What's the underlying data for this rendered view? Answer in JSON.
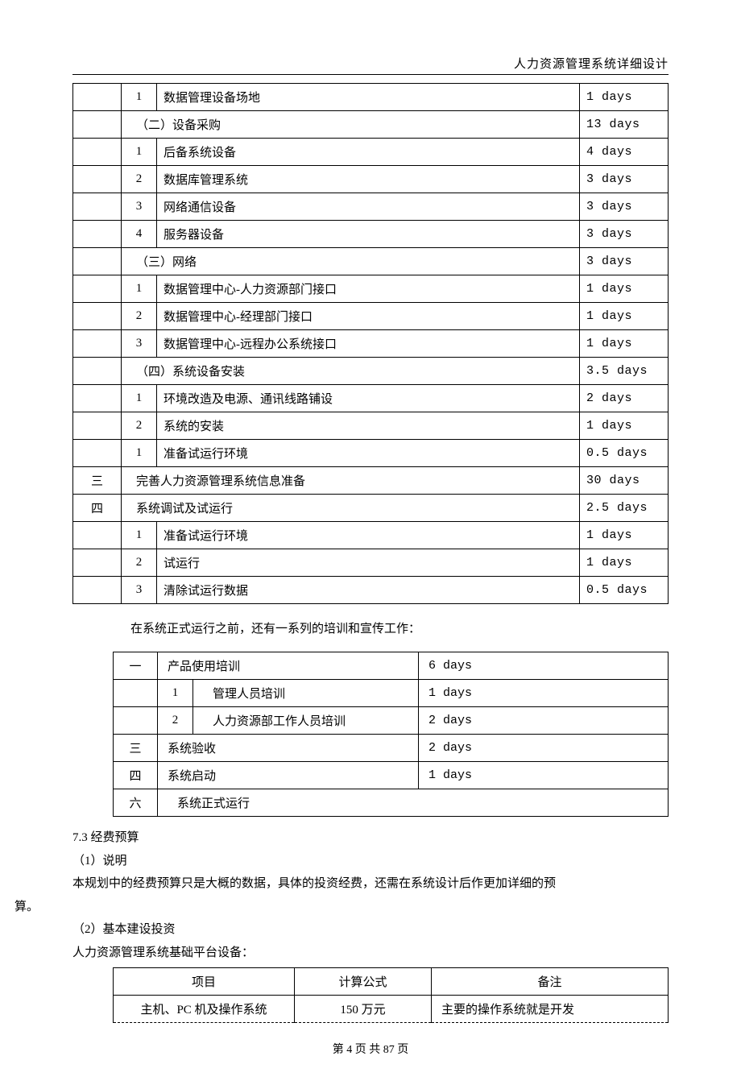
{
  "header": {
    "title": "人力资源管理系统详细设计"
  },
  "table1": {
    "columns": {
      "a_width": 60,
      "b_width": 44,
      "d_width": 110
    },
    "rows": [
      {
        "a": "",
        "b": "1",
        "c": "数据管理设备场地",
        "d": "1 days"
      },
      {
        "a": "",
        "section": "（二）设备采购",
        "d": "13 days"
      },
      {
        "a": "",
        "b": "1",
        "c": "后备系统设备",
        "d": "4 days"
      },
      {
        "a": "",
        "b": "2",
        "c": "数据库管理系统",
        "d": "3 days"
      },
      {
        "a": "",
        "b": "3",
        "c": "网络通信设备",
        "d": "3 days"
      },
      {
        "a": "",
        "b": "4",
        "c": "服务器设备",
        "d": "3 days"
      },
      {
        "a": "",
        "section": "（三）网络",
        "d": "3 days"
      },
      {
        "a": "",
        "b": "1",
        "c": "数据管理中心-人力资源部门接口",
        "d": "1 days"
      },
      {
        "a": "",
        "b": "2",
        "c": "数据管理中心-经理部门接口",
        "d": "1 days"
      },
      {
        "a": "",
        "b": "3",
        "c": "数据管理中心-远程办公系统接口",
        "d": "1 days"
      },
      {
        "a": "",
        "section": "（四）系统设备安装",
        "d": "3.5 days"
      },
      {
        "a": "",
        "b": "1",
        "c": "环境改造及电源、通讯线路铺设",
        "d": "2 days"
      },
      {
        "a": "",
        "b": "2",
        "c": "系统的安装",
        "d": "1 days"
      },
      {
        "a": "",
        "b": "1",
        "c": "准备试运行环境",
        "d": "0.5 days"
      },
      {
        "a": "三",
        "full": "完善人力资源管理系统信息准备",
        "d": "30 days"
      },
      {
        "a": "四",
        "full": "系统调试及试运行",
        "d": "2.5 days"
      },
      {
        "a": "",
        "b": "1",
        "c": "准备试运行环境",
        "d": "1 days"
      },
      {
        "a": "",
        "b": "2",
        "c": "试运行",
        "d": "1 days"
      },
      {
        "a": "",
        "b": "3",
        "c": "清除试运行数据",
        "d": "0.5 days"
      }
    ]
  },
  "para1": "在系统正式运行之前，还有一系列的培训和宣传工作：",
  "table2": {
    "rows": [
      {
        "c1": "一",
        "merge23": "产品使用培训",
        "c4": "6 days"
      },
      {
        "c1": "",
        "c2": "1",
        "c3": "管理人员培训",
        "c4": "1 days"
      },
      {
        "c1": "",
        "c2": "2",
        "c3": "人力资源部工作人员培训",
        "c4": "2 days"
      },
      {
        "c1": "三",
        "merge23": "系统验收",
        "c4": "2 days"
      },
      {
        "c1": "四",
        "merge23": "系统启动",
        "c4": "1 days"
      },
      {
        "c1": "六",
        "merge_all": "系统正式运行"
      }
    ]
  },
  "body": {
    "l1": "7.3 经费预算",
    "l2": "（1）说明",
    "l3": "本规划中的经费预算只是大概的数据，具体的投资经费，还需在系统设计后作更加详细的预",
    "l3b": "算。",
    "l4": "（2）基本建设投资",
    "l5": "人力资源管理系统基础平台设备："
  },
  "table3": {
    "header": [
      "项目",
      "计算公式",
      "备注"
    ],
    "row": [
      "主机、PC 机及操作系统",
      "150 万元",
      "主要的操作系统就是开发"
    ]
  },
  "footer": {
    "text": "第 4 页 共 87 页"
  }
}
